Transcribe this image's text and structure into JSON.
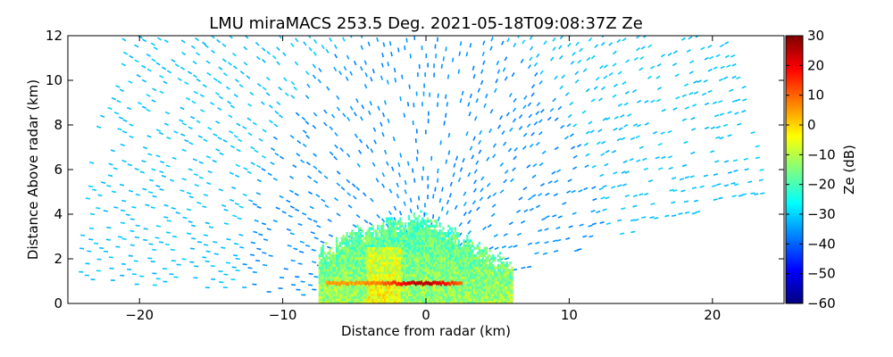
{
  "chart_data": {
    "type": "scatter",
    "title": "LMU miraMACS 253.5 Deg. 2021-05-18T09:08:37Z  Ze",
    "xlabel": "Distance from radar (km)",
    "ylabel": "Distance Above radar  (km)",
    "xlim": [
      -25,
      25
    ],
    "ylim": [
      0,
      12
    ],
    "xticks": [
      -20,
      -10,
      0,
      10,
      20
    ],
    "yticks": [
      0,
      2,
      4,
      6,
      8,
      10,
      12
    ],
    "grid": false,
    "colorbar": {
      "label": "Ze (dB)",
      "range": [
        -60,
        30
      ],
      "ticks": [
        30,
        20,
        10,
        0,
        -10,
        -20,
        -30,
        -40,
        -50,
        -60
      ],
      "colormap": [
        "#00007f",
        "#0000ff",
        "#007fff",
        "#00ffff",
        "#7fff7f",
        "#ffff00",
        "#ff7f00",
        "#ff0000",
        "#7f0000"
      ]
    },
    "fields": {
      "noise_far_ze": -30,
      "noise_near_ze": -38,
      "cloud": {
        "x_range": [
          -7.5,
          6
        ],
        "typical_ze": -15,
        "top_km": [
          2.3,
          3.3,
          4.0,
          2.6,
          1.7
        ],
        "top_x": [
          -7.5,
          -4.5,
          -0.5,
          3.5,
          6.0
        ]
      },
      "bright_band": {
        "height_km": 0.9,
        "peak_ze": 25,
        "x_range": [
          -7,
          2.5
        ]
      }
    }
  }
}
